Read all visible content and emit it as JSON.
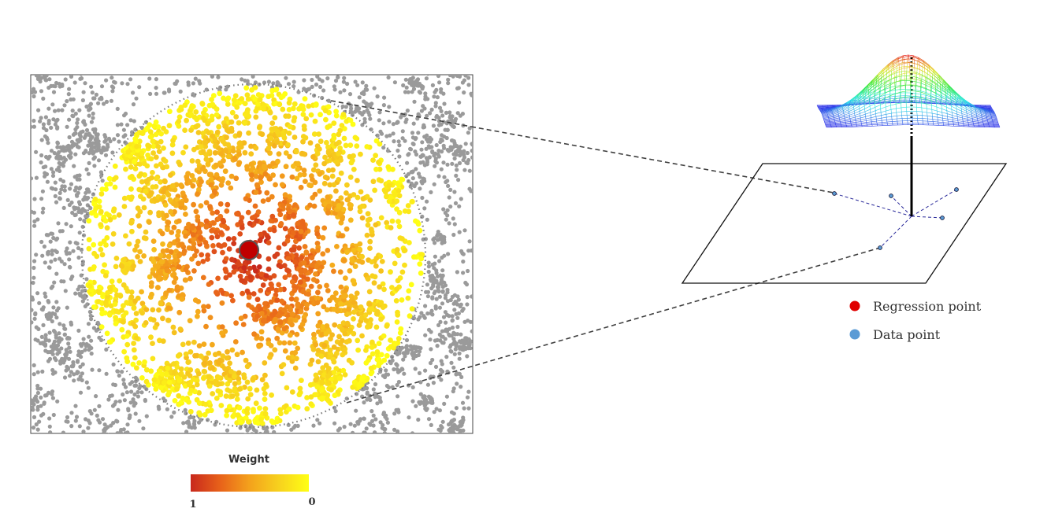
{
  "legend": {
    "items": [
      {
        "label": "Regression point",
        "color": "#e00000"
      },
      {
        "label": "Data point",
        "color": "#5b9bd5"
      }
    ]
  },
  "colorbar": {
    "title": "Weight",
    "min_label": "1",
    "max_label": "0",
    "gradient": [
      "#c8281c",
      "#e8621a",
      "#f4a21c",
      "#f7d21e",
      "#ffff14"
    ]
  },
  "colors": {
    "gray_points": "#9a9a9a",
    "regression_point": "#c00000",
    "data_point": "#5b9bd5",
    "connector": "#404040",
    "plane_link": "#2a2a9a"
  }
}
